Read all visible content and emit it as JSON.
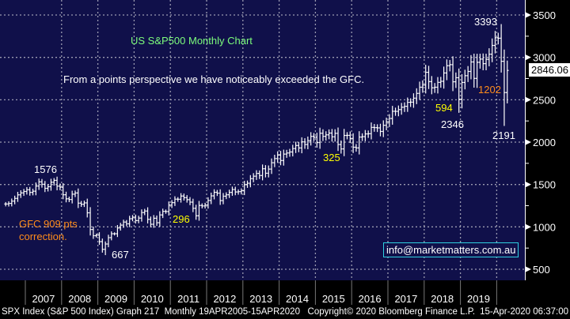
{
  "chart_data": {
    "type": "ohlc-bar",
    "title": "US S&P500 Monthly Chart",
    "subtitle": "From a points perspective we have noticeably exceeded the GFC.",
    "frequency": "Monthly",
    "start_month": "2006-06",
    "closes": [
      1270,
      1277,
      1304,
      1336,
      1378,
      1401,
      1418,
      1438,
      1407,
      1421,
      1482,
      1531,
      1503,
      1455,
      1474,
      1527,
      1549,
      1481,
      1468,
      1379,
      1331,
      1323,
      1386,
      1400,
      1280,
      1267,
      1283,
      1166,
      969,
      896,
      903,
      826,
      735,
      798,
      873,
      919,
      919,
      987,
      1021,
      1057,
      1036,
      1096,
      1115,
      1074,
      1104,
      1169,
      1187,
      1089,
      1031,
      1102,
      1049,
      1141,
      1183,
      1181,
      1258,
      1286,
      1327,
      1326,
      1364,
      1345,
      1321,
      1292,
      1219,
      1131,
      1253,
      1247,
      1258,
      1312,
      1366,
      1408,
      1398,
      1310,
      1362,
      1379,
      1407,
      1441,
      1412,
      1416,
      1426,
      1498,
      1515,
      1569,
      1598,
      1631,
      1606,
      1686,
      1633,
      1682,
      1757,
      1806,
      1848,
      1783,
      1859,
      1872,
      1884,
      1924,
      1960,
      1931,
      2003,
      1972,
      2018,
      2068,
      2059,
      1995,
      2105,
      2068,
      2086,
      2107,
      2063,
      2104,
      1972,
      1920,
      2079,
      2080,
      2044,
      1940,
      1932,
      2060,
      2065,
      2097,
      2099,
      2174,
      2171,
      2168,
      2126,
      2199,
      2239,
      2279,
      2364,
      2363,
      2384,
      2412,
      2423,
      2470,
      2472,
      2519,
      2575,
      2648,
      2674,
      2824,
      2714,
      2641,
      2648,
      2705,
      2718,
      2816,
      2902,
      2914,
      2712,
      2760,
      2507,
      2704,
      2784,
      2834,
      2946,
      2752,
      2942,
      2980,
      2926,
      2977,
      3038,
      3141,
      3231,
      3226,
      2954,
      2585,
      2846
    ],
    "extremes": [
      {
        "month": "2007-10",
        "high": 1576
      },
      {
        "month": "2009-03",
        "low": 667
      },
      {
        "month": "2018-12",
        "low": 2346
      },
      {
        "month": "2020-02",
        "high": 3393
      },
      {
        "month": "2020-03",
        "low": 2191
      }
    ],
    "x_ticks": [
      "2007",
      "2008",
      "2009",
      "2010",
      "2011",
      "2012",
      "2013",
      "2014",
      "2015",
      "2016",
      "2017",
      "2018",
      "2019"
    ],
    "y_ticks": [
      "500",
      "1000",
      "1500",
      "2000",
      "2500",
      "3000",
      "3500"
    ],
    "ylim": [
      450,
      3600
    ],
    "grid": true,
    "last_price": "2846.06",
    "annotations": [
      {
        "text": "3393",
        "color": "#ffffff"
      },
      {
        "text": "594",
        "color": "#ffff00"
      },
      {
        "text": "2346",
        "color": "#ffffff"
      },
      {
        "text": "1202",
        "color": "#ff8c1a"
      },
      {
        "text": "2191",
        "color": "#ffffff"
      },
      {
        "text": "325",
        "color": "#ffff00"
      },
      {
        "text": "1576",
        "color": "#ffffff"
      },
      {
        "text": "296",
        "color": "#ffff00"
      },
      {
        "text": "667",
        "color": "#ffffff"
      },
      {
        "text": "GFC 909 pts",
        "color": "#ff8c1a"
      },
      {
        "text": "correction.",
        "color": "#ff8c1a"
      }
    ],
    "colors": {
      "background": "#10104a",
      "bars": "#ffffff",
      "title": "#7cfc7c",
      "email_border": "#2fd0e0"
    }
  },
  "email": "info@marketmatters.com.au",
  "footer": {
    "left": "SPX Index (S&P 500 Index) Graph 217  Monthly 19APR2005-15APR2020   Copyright© 2020 Bloomberg Finance L.P.",
    "right": "15-Apr-2020 06:37:00"
  }
}
